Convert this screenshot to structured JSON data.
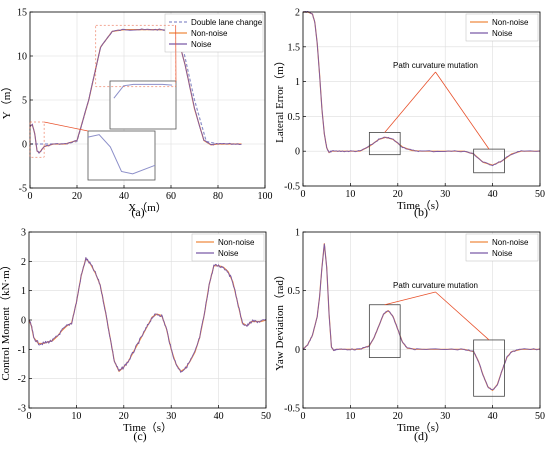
{
  "chart_data": [
    {
      "type": "line",
      "caption": "(a)",
      "xlabel": "X（m）",
      "ylabel": "Y（m）",
      "xlim": [
        0,
        100
      ],
      "ylim": [
        -5,
        15
      ],
      "xticks": [
        0,
        20,
        40,
        60,
        80,
        100
      ],
      "yticks": [
        -5,
        0,
        5,
        10,
        15
      ],
      "grid": true,
      "legend_position": "top-right",
      "series": [
        {
          "name": "Double lane change",
          "color": "#8c8fc9",
          "dash": "dashed",
          "x": [
            0,
            15,
            20,
            25,
            30,
            35,
            40,
            45,
            50,
            55,
            60,
            65,
            70,
            75,
            80,
            85,
            90
          ],
          "y": [
            0,
            0,
            0.3,
            5,
            11,
            12.8,
            13,
            13,
            13,
            13,
            12.8,
            11,
            5,
            0.3,
            0,
            0,
            0
          ]
        },
        {
          "name": "Non-noise",
          "color": "#ef8a40",
          "dash": "solid",
          "x": [
            0,
            1,
            2,
            3,
            4,
            6,
            10,
            15,
            20,
            25,
            30,
            35,
            40,
            45,
            50,
            55,
            60,
            63,
            66,
            70,
            74,
            77,
            80,
            85,
            90
          ],
          "y": [
            2.0,
            2.2,
            1.2,
            -0.8,
            -1.0,
            -0.3,
            0,
            0,
            0.4,
            5,
            11,
            12.8,
            13,
            13,
            13,
            13,
            12.9,
            12,
            9,
            4,
            0.4,
            -0.1,
            0,
            0,
            0
          ]
        },
        {
          "name": "Noise",
          "color": "#7b5aa6",
          "dash": "solid",
          "x": [
            0,
            1,
            2,
            3,
            4,
            6,
            10,
            15,
            20,
            25,
            30,
            35,
            40,
            45,
            50,
            55,
            60,
            63,
            66,
            70,
            74,
            77,
            80,
            85,
            90
          ],
          "y": [
            2.0,
            2.2,
            1.2,
            -0.8,
            -1.0,
            -0.3,
            0,
            0,
            0.4,
            5,
            11,
            12.8,
            13,
            13,
            13,
            13,
            12.9,
            12,
            9,
            4,
            0.4,
            -0.1,
            0,
            0,
            0
          ]
        }
      ],
      "inset_regions": [
        {
          "data_box": {
            "x": [
              28,
              62
            ],
            "y": [
              6.5,
              13.5
            ]
          }
        },
        {
          "data_box": {
            "x": [
              0,
              6
            ],
            "y": [
              -1.5,
              2.5
            ]
          }
        }
      ]
    },
    {
      "type": "line",
      "caption": "(b)",
      "xlabel": "Time（s）",
      "ylabel": "Lateral Error（m）",
      "xlim": [
        0,
        50
      ],
      "ylim": [
        -0.5,
        2
      ],
      "xticks": [
        0,
        10,
        20,
        30,
        40,
        50
      ],
      "yticks": [
        -0.5,
        0,
        0.5,
        1,
        1.5,
        2
      ],
      "grid": true,
      "legend_position": "top-right",
      "series": [
        {
          "name": "Non-noise",
          "color": "#ef8a40",
          "x": [
            0,
            1,
            2,
            2.5,
            3,
            3.5,
            4,
            4.5,
            5,
            5.5,
            6,
            8,
            10,
            12,
            14,
            16,
            17.5,
            19,
            21,
            23,
            25,
            30,
            34,
            36,
            38,
            40,
            42,
            44,
            46,
            50
          ],
          "y": [
            2.0,
            2.0,
            1.97,
            1.85,
            1.55,
            1.1,
            0.6,
            0.25,
            0.05,
            -0.02,
            0,
            0,
            0,
            0,
            0.07,
            0.17,
            0.2,
            0.17,
            0.06,
            0.01,
            0,
            0,
            0,
            -0.04,
            -0.16,
            -0.2,
            -0.14,
            -0.04,
            0,
            0
          ]
        },
        {
          "name": "Noise",
          "color": "#7b5aa6",
          "x": [
            0,
            1,
            2,
            2.5,
            3,
            3.5,
            4,
            4.5,
            5,
            5.5,
            6,
            8,
            10,
            12,
            14,
            16,
            17.5,
            19,
            21,
            23,
            25,
            30,
            34,
            36,
            38,
            40,
            42,
            44,
            46,
            50
          ],
          "y": [
            2.0,
            2.0,
            1.97,
            1.85,
            1.55,
            1.1,
            0.6,
            0.25,
            0.05,
            -0.02,
            0,
            0,
            0,
            0,
            0.07,
            0.17,
            0.2,
            0.17,
            0.06,
            0.01,
            0,
            0,
            0,
            -0.04,
            -0.16,
            -0.2,
            -0.14,
            -0.04,
            0,
            0
          ]
        }
      ],
      "annotation": "Path curvature mutation",
      "boxes": [
        {
          "x": [
            14,
            20.5
          ],
          "y": [
            -0.05,
            0.27
          ]
        },
        {
          "x": [
            36,
            42.5
          ],
          "y": [
            -0.31,
            0.03
          ]
        }
      ]
    },
    {
      "type": "line",
      "caption": "(c)",
      "xlabel": "Time（s）",
      "ylabel": "Control Moment（kN·m）",
      "xlim": [
        0,
        50
      ],
      "ylim": [
        -3,
        3
      ],
      "xticks": [
        0,
        10,
        20,
        30,
        40,
        50
      ],
      "yticks": [
        -3,
        -2,
        -1,
        0,
        1,
        2,
        3
      ],
      "grid": true,
      "legend_position": "top-right",
      "series": [
        {
          "name": "Non-noise",
          "color": "#ef8a40",
          "x": [
            0,
            0.5,
            1,
            2,
            3,
            4,
            5,
            6,
            7,
            8,
            9,
            10,
            11,
            12,
            13,
            14,
            15,
            16,
            17,
            18,
            19,
            20,
            21,
            22,
            23,
            24,
            25,
            26,
            27,
            28,
            29,
            30,
            31,
            32,
            33,
            34,
            35,
            36,
            37,
            38,
            39,
            40,
            41,
            42,
            43,
            44,
            45,
            46,
            47,
            48,
            49,
            50
          ],
          "y": [
            0,
            -0.2,
            -0.6,
            -0.8,
            -0.8,
            -0.75,
            -0.7,
            -0.55,
            -0.35,
            -0.2,
            -0.1,
            0.6,
            1.5,
            2.1,
            1.9,
            1.6,
            1.2,
            0.4,
            -0.5,
            -1.4,
            -1.75,
            -1.6,
            -1.4,
            -1.1,
            -0.8,
            -0.5,
            -0.2,
            0.1,
            0.2,
            0.15,
            -0.3,
            -1.0,
            -1.5,
            -1.75,
            -1.65,
            -1.4,
            -1.1,
            -0.6,
            0.2,
            1.2,
            1.85,
            1.85,
            1.8,
            1.65,
            1.3,
            0.6,
            -0.1,
            -0.2,
            -0.05,
            -0.05,
            -0.05,
            0
          ]
        },
        {
          "name": "Noise",
          "color": "#7b5aa6",
          "x": [
            0,
            0.5,
            1,
            2,
            3,
            4,
            5,
            6,
            7,
            8,
            9,
            10,
            11,
            12,
            13,
            14,
            15,
            16,
            17,
            18,
            19,
            20,
            21,
            22,
            23,
            24,
            25,
            26,
            27,
            28,
            29,
            30,
            31,
            32,
            33,
            34,
            35,
            36,
            37,
            38,
            39,
            40,
            41,
            42,
            43,
            44,
            45,
            46,
            47,
            48,
            49,
            50
          ],
          "y": [
            0,
            -0.2,
            -0.6,
            -0.8,
            -0.8,
            -0.75,
            -0.7,
            -0.55,
            -0.35,
            -0.2,
            -0.1,
            0.6,
            1.5,
            2.1,
            1.9,
            1.6,
            1.2,
            0.4,
            -0.5,
            -1.4,
            -1.75,
            -1.6,
            -1.4,
            -1.1,
            -0.8,
            -0.5,
            -0.2,
            0.1,
            0.2,
            0.15,
            -0.3,
            -1.0,
            -1.5,
            -1.75,
            -1.65,
            -1.4,
            -1.1,
            -0.6,
            0.2,
            1.2,
            1.85,
            1.85,
            1.8,
            1.65,
            1.3,
            0.6,
            -0.1,
            -0.2,
            -0.05,
            -0.05,
            -0.05,
            0
          ]
        }
      ]
    },
    {
      "type": "line",
      "caption": "(d)",
      "xlabel": "Time（s）",
      "ylabel": "Yaw Deviation（rad）",
      "xlim": [
        0,
        50
      ],
      "ylim": [
        -0.5,
        1
      ],
      "xticks": [
        0,
        10,
        20,
        30,
        40,
        50
      ],
      "yticks": [
        -0.5,
        0,
        0.5,
        1
      ],
      "grid": true,
      "legend_position": "top-right",
      "series": [
        {
          "name": "Non-noise",
          "color": "#ef8a40",
          "x": [
            0,
            1,
            2,
            3,
            3.5,
            4,
            4.5,
            5,
            5.5,
            6,
            6.5,
            7,
            8,
            10,
            12,
            14,
            15,
            16,
            17,
            18,
            19,
            20,
            21,
            22,
            24,
            30,
            34,
            36,
            37,
            38,
            39,
            40,
            41,
            42,
            43,
            44,
            46,
            50
          ],
          "y": [
            0,
            0.04,
            0.12,
            0.28,
            0.45,
            0.7,
            0.9,
            0.7,
            0.3,
            0.02,
            -0.01,
            0,
            0,
            0,
            0,
            0.03,
            0.1,
            0.2,
            0.3,
            0.33,
            0.28,
            0.17,
            0.06,
            0.01,
            0,
            0,
            0,
            -0.02,
            -0.1,
            -0.22,
            -0.32,
            -0.35,
            -0.3,
            -0.18,
            -0.07,
            -0.02,
            0,
            0
          ]
        },
        {
          "name": "Noise",
          "color": "#7b5aa6",
          "x": [
            0,
            1,
            2,
            3,
            3.5,
            4,
            4.5,
            5,
            5.5,
            6,
            6.5,
            7,
            8,
            10,
            12,
            14,
            15,
            16,
            17,
            18,
            19,
            20,
            21,
            22,
            24,
            30,
            34,
            36,
            37,
            38,
            39,
            40,
            41,
            42,
            43,
            44,
            46,
            50
          ],
          "y": [
            0,
            0.04,
            0.12,
            0.28,
            0.45,
            0.7,
            0.9,
            0.7,
            0.3,
            0.02,
            -0.01,
            0,
            0,
            0,
            0,
            0.03,
            0.1,
            0.2,
            0.3,
            0.33,
            0.28,
            0.17,
            0.06,
            0.01,
            0,
            0,
            0,
            -0.02,
            -0.1,
            -0.22,
            -0.32,
            -0.35,
            -0.3,
            -0.18,
            -0.07,
            -0.02,
            0,
            0
          ]
        }
      ],
      "annotation": "Path curvature mutation",
      "boxes": [
        {
          "x": [
            14,
            20.5
          ],
          "y": [
            -0.07,
            0.38
          ]
        },
        {
          "x": [
            36,
            42.5
          ],
          "y": [
            -0.4,
            0.08
          ]
        }
      ]
    }
  ]
}
